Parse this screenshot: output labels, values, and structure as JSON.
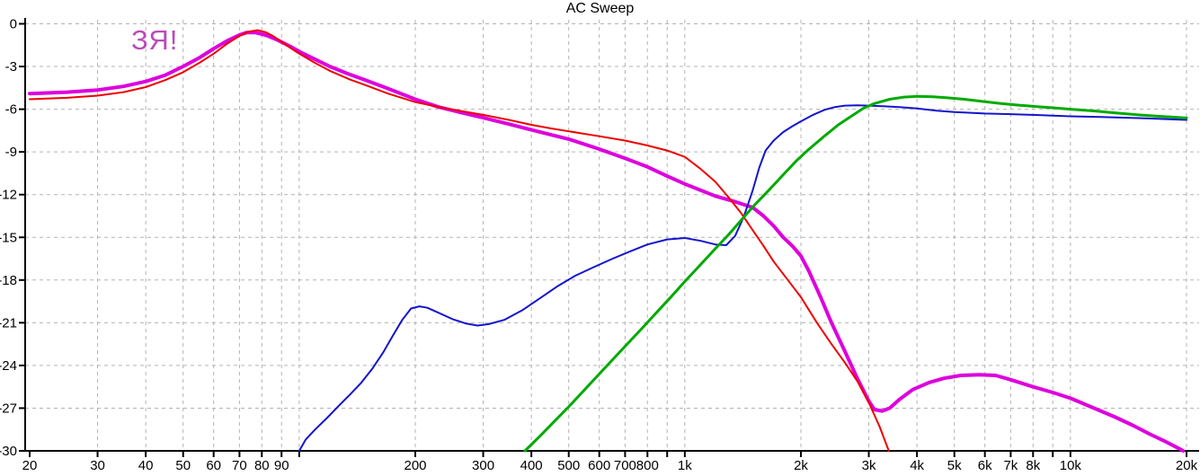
{
  "title": "AC Sweep",
  "annotation": {
    "text": "ЗЯ!",
    "color": "#ba4aba"
  },
  "colors": {
    "background": "#ffffff",
    "axis": "#000000",
    "grid": "#b3b3b3",
    "tick_label": "#000000"
  },
  "chart_data": {
    "type": "line",
    "title": "AC Sweep",
    "grid": {
      "style": "dashed",
      "color": "#b3b3b3"
    },
    "x_axis": {
      "scale": "log",
      "unit": "Hz",
      "min": 20,
      "max": 20000,
      "ticks": [
        {
          "f": 20,
          "label": "20",
          "grid": false
        },
        {
          "f": 30,
          "label": "30",
          "grid": true
        },
        {
          "f": 40,
          "label": "40",
          "grid": true
        },
        {
          "f": 50,
          "label": "50",
          "grid": true
        },
        {
          "f": 60,
          "label": "60",
          "grid": true
        },
        {
          "f": 70,
          "label": "70",
          "grid": true
        },
        {
          "f": 80,
          "label": "80",
          "grid": true
        },
        {
          "f": 90,
          "label": "90",
          "grid": true
        },
        {
          "f": 100,
          "label": "",
          "grid": true
        },
        {
          "f": 200,
          "label": "200",
          "grid": true
        },
        {
          "f": 300,
          "label": "300",
          "grid": true
        },
        {
          "f": 400,
          "label": "400",
          "grid": true
        },
        {
          "f": 500,
          "label": "500",
          "grid": true
        },
        {
          "f": 600,
          "label": "600",
          "grid": true
        },
        {
          "f": 700,
          "label": "700",
          "grid": true
        },
        {
          "f": 800,
          "label": "800",
          "grid": true
        },
        {
          "f": 900,
          "label": "",
          "grid": true
        },
        {
          "f": 1000,
          "label": "1k",
          "grid": true
        },
        {
          "f": 2000,
          "label": "2k",
          "grid": true
        },
        {
          "f": 3000,
          "label": "3k",
          "grid": true
        },
        {
          "f": 4000,
          "label": "4k",
          "grid": true
        },
        {
          "f": 5000,
          "label": "5k",
          "grid": true
        },
        {
          "f": 6000,
          "label": "6k",
          "grid": true
        },
        {
          "f": 7000,
          "label": "7k",
          "grid": true
        },
        {
          "f": 8000,
          "label": "8k",
          "grid": true
        },
        {
          "f": 9000,
          "label": "",
          "grid": true
        },
        {
          "f": 10000,
          "label": "10k",
          "grid": true
        },
        {
          "f": 20000,
          "label": "20k",
          "grid": true
        }
      ]
    },
    "y_axis": {
      "unit": "dB",
      "min": -30,
      "max": 0,
      "step": 3,
      "ticks": [
        {
          "db": 0,
          "label": "0"
        },
        {
          "db": -3,
          "label": "-3"
        },
        {
          "db": -6,
          "label": "-6"
        },
        {
          "db": -9,
          "label": "-9"
        },
        {
          "db": -12,
          "label": "-12"
        },
        {
          "db": -15,
          "label": "-15"
        },
        {
          "db": -18,
          "label": "-18"
        },
        {
          "db": -21,
          "label": "-21"
        },
        {
          "db": -24,
          "label": "-24"
        },
        {
          "db": -27,
          "label": "-27"
        },
        {
          "db": -30,
          "label": "-30"
        }
      ]
    },
    "series": [
      {
        "name": "magenta-curve",
        "annotation": "ЗЯ!",
        "color": "#dd00dd",
        "width": 4,
        "points": [
          [
            20,
            -4.9
          ],
          [
            25,
            -4.8
          ],
          [
            30,
            -4.65
          ],
          [
            35,
            -4.4
          ],
          [
            40,
            -4.05
          ],
          [
            45,
            -3.6
          ],
          [
            50,
            -3.0
          ],
          [
            55,
            -2.4
          ],
          [
            60,
            -1.75
          ],
          [
            65,
            -1.2
          ],
          [
            70,
            -0.78
          ],
          [
            73,
            -0.62
          ],
          [
            77,
            -0.62
          ],
          [
            82,
            -0.8
          ],
          [
            88,
            -1.15
          ],
          [
            95,
            -1.6
          ],
          [
            100,
            -1.95
          ],
          [
            110,
            -2.5
          ],
          [
            120,
            -3.0
          ],
          [
            135,
            -3.55
          ],
          [
            150,
            -4.0
          ],
          [
            170,
            -4.55
          ],
          [
            200,
            -5.3
          ],
          [
            230,
            -5.85
          ],
          [
            260,
            -6.2
          ],
          [
            300,
            -6.6
          ],
          [
            350,
            -7.05
          ],
          [
            400,
            -7.45
          ],
          [
            450,
            -7.8
          ],
          [
            500,
            -8.1
          ],
          [
            600,
            -8.8
          ],
          [
            700,
            -9.45
          ],
          [
            800,
            -10.05
          ],
          [
            900,
            -10.7
          ],
          [
            1000,
            -11.25
          ],
          [
            1100,
            -11.7
          ],
          [
            1200,
            -12.1
          ],
          [
            1350,
            -12.5
          ],
          [
            1500,
            -12.9
          ],
          [
            1600,
            -13.5
          ],
          [
            1700,
            -14.2
          ],
          [
            1800,
            -15.0
          ],
          [
            1900,
            -15.6
          ],
          [
            2000,
            -16.3
          ],
          [
            2100,
            -17.4
          ],
          [
            2250,
            -19.2
          ],
          [
            2400,
            -21.0
          ],
          [
            2600,
            -23.0
          ],
          [
            2800,
            -24.9
          ],
          [
            3000,
            -26.5
          ],
          [
            3100,
            -27.1
          ],
          [
            3250,
            -27.2
          ],
          [
            3400,
            -27.0
          ],
          [
            3600,
            -26.4
          ],
          [
            3900,
            -25.7
          ],
          [
            4300,
            -25.2
          ],
          [
            4700,
            -24.9
          ],
          [
            5200,
            -24.7
          ],
          [
            5800,
            -24.65
          ],
          [
            6400,
            -24.7
          ],
          [
            7000,
            -25.0
          ],
          [
            8000,
            -25.5
          ],
          [
            9000,
            -25.9
          ],
          [
            10000,
            -26.3
          ],
          [
            11500,
            -27.0
          ],
          [
            13000,
            -27.6
          ],
          [
            14500,
            -28.2
          ],
          [
            16000,
            -28.8
          ],
          [
            17500,
            -29.3
          ],
          [
            19000,
            -29.8
          ],
          [
            19600,
            -30
          ]
        ]
      },
      {
        "name": "red-curve",
        "color": "#ee0000",
        "width": 2,
        "points": [
          [
            20,
            -5.3
          ],
          [
            25,
            -5.2
          ],
          [
            30,
            -5.05
          ],
          [
            35,
            -4.8
          ],
          [
            40,
            -4.45
          ],
          [
            45,
            -3.95
          ],
          [
            50,
            -3.4
          ],
          [
            55,
            -2.75
          ],
          [
            60,
            -2.1
          ],
          [
            65,
            -1.4
          ],
          [
            70,
            -0.85
          ],
          [
            74,
            -0.55
          ],
          [
            78,
            -0.45
          ],
          [
            82,
            -0.6
          ],
          [
            86,
            -0.9
          ],
          [
            92,
            -1.45
          ],
          [
            100,
            -2.1
          ],
          [
            110,
            -2.75
          ],
          [
            120,
            -3.3
          ],
          [
            135,
            -3.9
          ],
          [
            150,
            -4.35
          ],
          [
            170,
            -4.9
          ],
          [
            200,
            -5.5
          ],
          [
            230,
            -5.85
          ],
          [
            260,
            -6.1
          ],
          [
            300,
            -6.4
          ],
          [
            350,
            -6.75
          ],
          [
            400,
            -7.1
          ],
          [
            450,
            -7.35
          ],
          [
            500,
            -7.55
          ],
          [
            600,
            -7.9
          ],
          [
            700,
            -8.2
          ],
          [
            800,
            -8.55
          ],
          [
            900,
            -8.9
          ],
          [
            1000,
            -9.35
          ],
          [
            1100,
            -10.2
          ],
          [
            1200,
            -11.1
          ],
          [
            1300,
            -12.2
          ],
          [
            1400,
            -13.3
          ],
          [
            1500,
            -14.5
          ],
          [
            1600,
            -15.6
          ],
          [
            1700,
            -16.7
          ],
          [
            1850,
            -18.0
          ],
          [
            2000,
            -19.2
          ],
          [
            2200,
            -21.0
          ],
          [
            2400,
            -22.5
          ],
          [
            2600,
            -23.8
          ],
          [
            2800,
            -25.1
          ],
          [
            3000,
            -26.6
          ],
          [
            3200,
            -28.3
          ],
          [
            3380,
            -30
          ]
        ]
      },
      {
        "name": "blue-curve",
        "color": "#1414cc",
        "width": 2,
        "points": [
          [
            100,
            -30
          ],
          [
            104,
            -29.2
          ],
          [
            110,
            -28.5
          ],
          [
            118,
            -27.7
          ],
          [
            127,
            -26.8
          ],
          [
            136,
            -26.0
          ],
          [
            145,
            -25.2
          ],
          [
            155,
            -24.2
          ],
          [
            165,
            -23.1
          ],
          [
            175,
            -21.9
          ],
          [
            185,
            -20.8
          ],
          [
            195,
            -20.0
          ],
          [
            205,
            -19.85
          ],
          [
            215,
            -19.95
          ],
          [
            230,
            -20.3
          ],
          [
            250,
            -20.75
          ],
          [
            270,
            -21.05
          ],
          [
            290,
            -21.2
          ],
          [
            310,
            -21.1
          ],
          [
            340,
            -20.8
          ],
          [
            380,
            -20.1
          ],
          [
            420,
            -19.3
          ],
          [
            470,
            -18.4
          ],
          [
            520,
            -17.7
          ],
          [
            580,
            -17.1
          ],
          [
            650,
            -16.5
          ],
          [
            720,
            -16.0
          ],
          [
            800,
            -15.5
          ],
          [
            900,
            -15.15
          ],
          [
            1000,
            -15.05
          ],
          [
            1100,
            -15.25
          ],
          [
            1200,
            -15.5
          ],
          [
            1280,
            -15.55
          ],
          [
            1350,
            -14.9
          ],
          [
            1420,
            -13.6
          ],
          [
            1500,
            -11.7
          ],
          [
            1560,
            -10.1
          ],
          [
            1620,
            -8.9
          ],
          [
            1700,
            -8.2
          ],
          [
            1800,
            -7.6
          ],
          [
            1900,
            -7.2
          ],
          [
            2000,
            -6.85
          ],
          [
            2150,
            -6.4
          ],
          [
            2300,
            -6.05
          ],
          [
            2450,
            -5.85
          ],
          [
            2600,
            -5.75
          ],
          [
            2800,
            -5.72
          ],
          [
            3000,
            -5.75
          ],
          [
            3300,
            -5.8
          ],
          [
            3600,
            -5.85
          ],
          [
            4000,
            -5.95
          ],
          [
            4500,
            -6.1
          ],
          [
            5000,
            -6.2
          ],
          [
            6000,
            -6.3
          ],
          [
            7000,
            -6.35
          ],
          [
            8000,
            -6.4
          ],
          [
            9000,
            -6.45
          ],
          [
            10000,
            -6.5
          ],
          [
            12000,
            -6.55
          ],
          [
            14000,
            -6.6
          ],
          [
            16000,
            -6.65
          ],
          [
            18000,
            -6.7
          ],
          [
            20000,
            -6.75
          ]
        ]
      },
      {
        "name": "green-curve",
        "color": "#00aa00",
        "width": 3,
        "points": [
          [
            385,
            -30
          ],
          [
            420,
            -29.0
          ],
          [
            460,
            -27.9
          ],
          [
            500,
            -26.9
          ],
          [
            550,
            -25.7
          ],
          [
            600,
            -24.6
          ],
          [
            660,
            -23.4
          ],
          [
            720,
            -22.3
          ],
          [
            780,
            -21.3
          ],
          [
            850,
            -20.2
          ],
          [
            920,
            -19.2
          ],
          [
            1000,
            -18.1
          ],
          [
            1100,
            -16.9
          ],
          [
            1200,
            -15.8
          ],
          [
            1300,
            -14.8
          ],
          [
            1400,
            -13.8
          ],
          [
            1520,
            -12.7
          ],
          [
            1650,
            -11.7
          ],
          [
            1800,
            -10.6
          ],
          [
            1950,
            -9.6
          ],
          [
            2100,
            -8.8
          ],
          [
            2300,
            -7.9
          ],
          [
            2500,
            -7.1
          ],
          [
            2700,
            -6.5
          ],
          [
            2900,
            -5.95
          ],
          [
            3100,
            -5.6
          ],
          [
            3400,
            -5.3
          ],
          [
            3700,
            -5.15
          ],
          [
            4000,
            -5.1
          ],
          [
            4400,
            -5.12
          ],
          [
            4800,
            -5.2
          ],
          [
            5300,
            -5.3
          ],
          [
            5900,
            -5.45
          ],
          [
            6600,
            -5.6
          ],
          [
            7400,
            -5.72
          ],
          [
            8200,
            -5.82
          ],
          [
            9000,
            -5.9
          ],
          [
            10000,
            -6.0
          ],
          [
            11500,
            -6.12
          ],
          [
            13000,
            -6.25
          ],
          [
            15000,
            -6.4
          ],
          [
            17000,
            -6.5
          ],
          [
            19000,
            -6.58
          ],
          [
            20000,
            -6.62
          ]
        ]
      }
    ]
  }
}
